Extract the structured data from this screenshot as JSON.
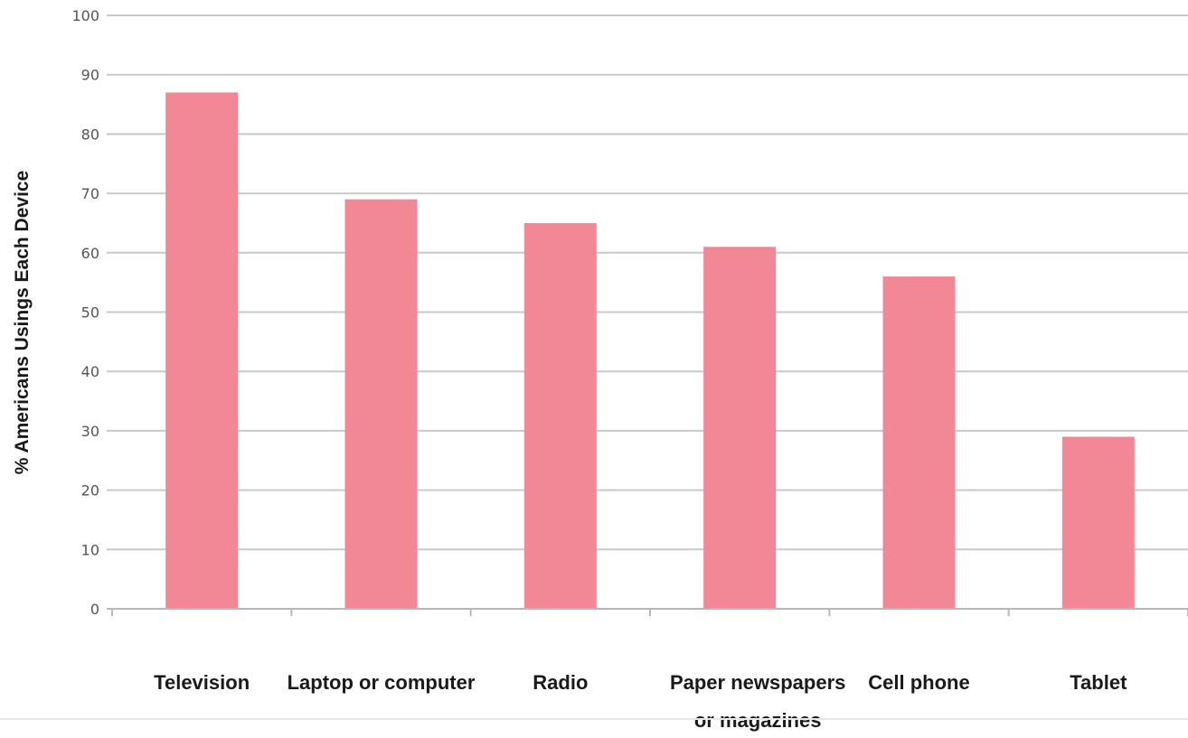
{
  "chart_data": {
    "type": "bar",
    "title": "",
    "xlabel": "",
    "ylabel": "% Americans Usings Each Device",
    "ylim": [
      0,
      100
    ],
    "yticks": [
      0,
      10,
      20,
      30,
      40,
      50,
      60,
      70,
      80,
      90,
      100
    ],
    "grid": true,
    "legend": "none",
    "bar_color": "#f28796",
    "categories": [
      [
        "Television"
      ],
      [
        "Laptop or computer"
      ],
      [
        "Radio"
      ],
      [
        "Paper newspapers",
        "or magazines"
      ],
      [
        "Cell phone"
      ],
      [
        "Tablet"
      ]
    ],
    "values": [
      87,
      69,
      65,
      61,
      56,
      29
    ]
  }
}
